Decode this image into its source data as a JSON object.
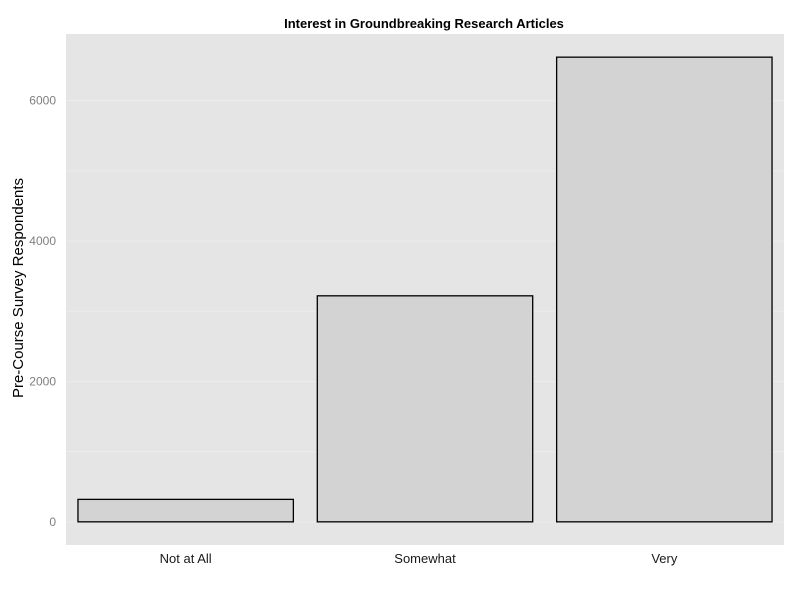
{
  "chart_data": {
    "type": "bar",
    "title": "Interest in Groundbreaking Research Articles",
    "xlabel": "",
    "ylabel": "Pre-Course Survey Respondents",
    "categories": [
      "Not at All",
      "Somewhat",
      "Very"
    ],
    "values": [
      320,
      3220,
      6620
    ],
    "ylim": [
      -330,
      6950
    ],
    "yticks": [
      0,
      2000,
      4000,
      6000
    ],
    "grid": true,
    "legend": "none",
    "colors": {
      "panel": "#e5e5e5",
      "grid": "#ececec",
      "bar_fill": "#d3d3d3",
      "bar_stroke": "#000000"
    }
  }
}
